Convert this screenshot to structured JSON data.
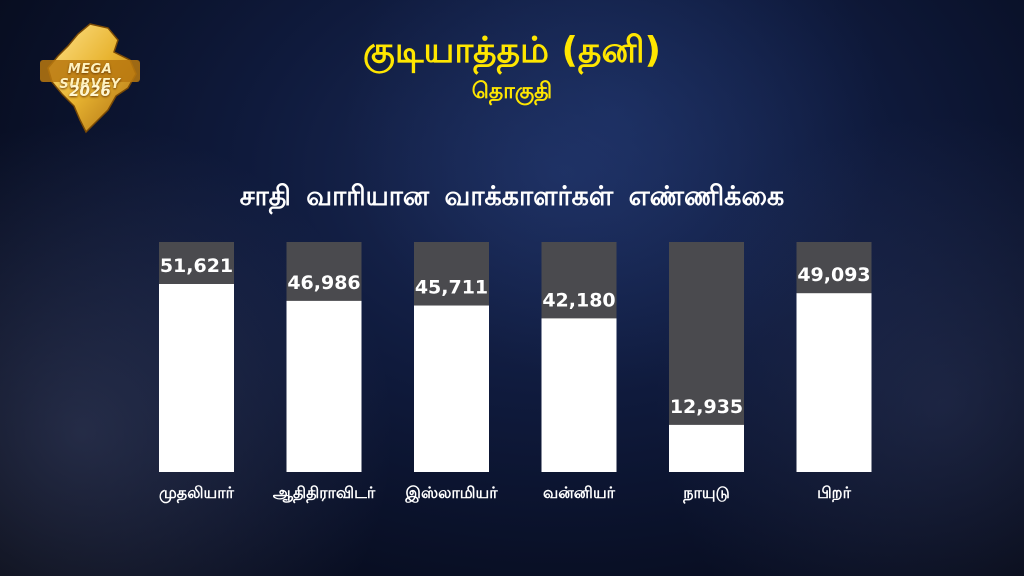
{
  "logo": {
    "title": "MEGA SURVEY",
    "year": "2026"
  },
  "header": {
    "title": "குடியாத்தம் (தனி)",
    "subtitle": "தொகுதி"
  },
  "colors": {
    "bar": "#ffffff",
    "bar_track": "#4a4a4e",
    "title": "#ffe600",
    "logo_gold": "#e8b431"
  },
  "chart_data": {
    "type": "bar",
    "title": "சாதி வாரியான வாக்காளர்கள் எண்ணிக்கை",
    "categories": [
      "முதலியார்",
      "ஆதிதிராவிடர்",
      "இஸ்லாமியர்",
      "வன்னியர்",
      "நாயுடு",
      "பிறர்"
    ],
    "values": [
      51621,
      46986,
      45711,
      42180,
      12935,
      49093
    ],
    "value_labels": [
      "51,621",
      "46,986",
      "45,711",
      "42,180",
      "12,935",
      "49,093"
    ],
    "ylim": [
      0,
      60000
    ],
    "grid": false,
    "legend": "none"
  }
}
